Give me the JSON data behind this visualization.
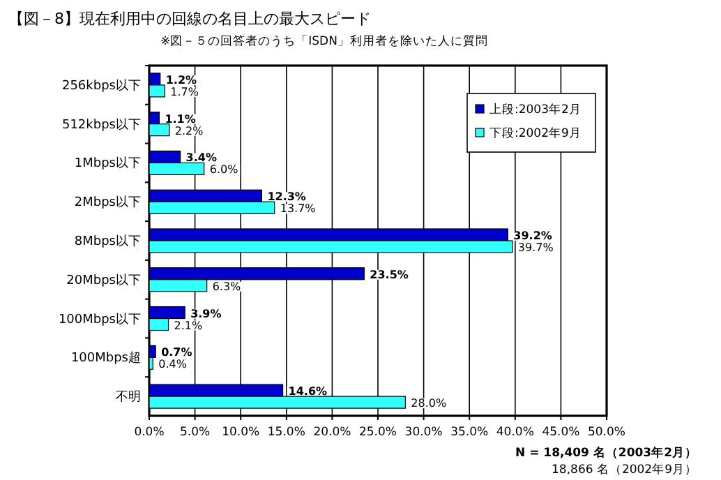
{
  "chart_data": {
    "type": "bar",
    "orientation": "horizontal",
    "title": "【図－8】現在利用中の回線の名目上の最大スピード",
    "subtitle": "※図－５の回答者のうち「ISDN」利用者を除いた人に質問",
    "categories": [
      "256kbps以下",
      "512kbps以下",
      "1Mbps以下",
      "2Mbps以下",
      "8Mbps以下",
      "20Mbps以下",
      "100Mbps以下",
      "100Mbps超",
      "不明"
    ],
    "series": [
      {
        "name": "上段:2003年2月",
        "color": "#0000cc",
        "values": [
          1.2,
          1.1,
          3.4,
          12.3,
          39.2,
          23.5,
          3.9,
          0.7,
          14.6
        ],
        "value_labels": [
          "1.2%",
          "1.1%",
          "3.4%",
          "12.3%",
          "39.2%",
          "23.5%",
          "3.9%",
          "0.7%",
          "14.6%"
        ]
      },
      {
        "name": "下段:2002年9月",
        "color": "#33ffff",
        "values": [
          1.7,
          2.2,
          6.0,
          13.7,
          39.7,
          6.3,
          2.1,
          0.4,
          28.0
        ],
        "value_labels": [
          "1.7%",
          "2.2%",
          "6.0%",
          "13.7%",
          "39.7%",
          "6.3%",
          "2.1%",
          "0.4%",
          "28.0%"
        ]
      }
    ],
    "xlim": [
      0,
      50
    ],
    "xticks": [
      {
        "value": 0,
        "label": "0.0%"
      },
      {
        "value": 5,
        "label": "5.0%"
      },
      {
        "value": 10,
        "label": "10.0%"
      },
      {
        "value": 15,
        "label": "15.0%"
      },
      {
        "value": 20,
        "label": "20.0%"
      },
      {
        "value": 25,
        "label": "25.0%"
      },
      {
        "value": 30,
        "label": "30.0%"
      },
      {
        "value": 35,
        "label": "35.0%"
      },
      {
        "value": 40,
        "label": "40.0%"
      },
      {
        "value": 45,
        "label": "45.0%"
      },
      {
        "value": 50,
        "label": "50.0%"
      }
    ],
    "grid": "x",
    "legend": "top right",
    "annotations": [
      "N = 18,409 名（2003年2月）",
      "18,866 名（2002年9月）"
    ]
  }
}
